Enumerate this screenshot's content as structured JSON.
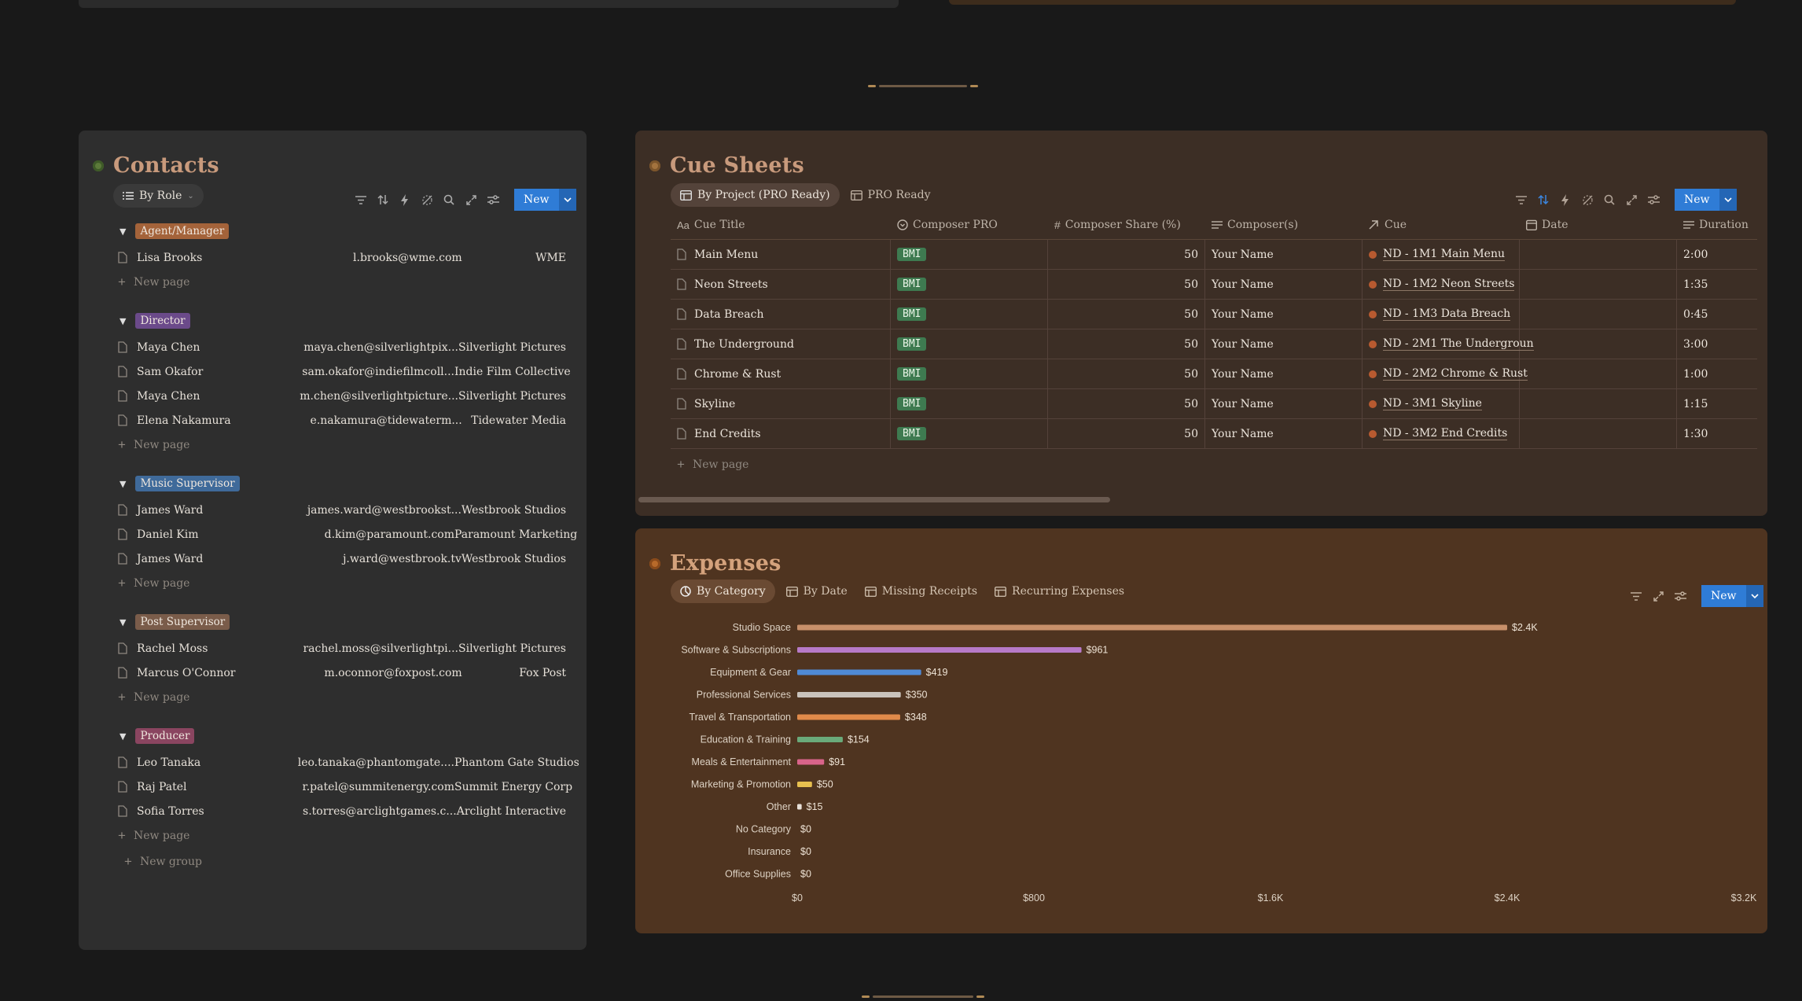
{
  "contacts": {
    "title": "Contacts",
    "view_label": "By Role",
    "new_label": "New",
    "new_page_label": "New page",
    "new_group_label": "New group",
    "groups": [
      {
        "tag": "Agent/Manager",
        "color": "#a4633a",
        "rows": [
          {
            "name": "Lisa Brooks",
            "email": "l.brooks@wme.com",
            "company": "WME"
          }
        ]
      },
      {
        "tag": "Director",
        "color": "#6b4a8a",
        "rows": [
          {
            "name": "Maya Chen",
            "email": "maya.chen@silverlightpix...",
            "company": "Silverlight Pictures"
          },
          {
            "name": "Sam Okafor",
            "email": "sam.okafor@indiefilmcoll...",
            "company": "Indie Film Collective"
          },
          {
            "name": "Maya Chen",
            "email": "m.chen@silverlightpicture...",
            "company": "Silverlight Pictures"
          },
          {
            "name": "Elena Nakamura",
            "email": "e.nakamura@tidewaterm...",
            "company": "Tidewater Media"
          }
        ]
      },
      {
        "tag": "Music Supervisor",
        "color": "#3f6a9a",
        "rows": [
          {
            "name": "James Ward",
            "email": "james.ward@westbrookst...",
            "company": "Westbrook Studios"
          },
          {
            "name": "Daniel Kim",
            "email": "d.kim@paramount.com",
            "company": "Paramount Marketing"
          },
          {
            "name": "James Ward",
            "email": "j.ward@westbrook.tv",
            "company": "Westbrook Studios"
          }
        ]
      },
      {
        "tag": "Post Supervisor",
        "color": "#7a5c4a",
        "rows": [
          {
            "name": "Rachel Moss",
            "email": "rachel.moss@silverlightpi...",
            "company": "Silverlight Pictures"
          },
          {
            "name": "Marcus O'Connor",
            "email": "m.oconnor@foxpost.com",
            "company": "Fox Post"
          }
        ]
      },
      {
        "tag": "Producer",
        "color": "#8a4560",
        "rows": [
          {
            "name": "Leo Tanaka",
            "email": "leo.tanaka@phantomgate....",
            "company": "Phantom Gate Studios"
          },
          {
            "name": "Raj Patel",
            "email": "r.patel@summitenergy.com",
            "company": "Summit Energy Corp"
          },
          {
            "name": "Sofia Torres",
            "email": "s.torres@arclightgames.c...",
            "company": "Arclight Interactive"
          }
        ]
      }
    ]
  },
  "cue_sheets": {
    "title": "Cue Sheets",
    "tabs": [
      "By Project (PRO Ready)",
      "PRO Ready"
    ],
    "new_label": "New",
    "new_page_label": "New page",
    "columns": [
      "Cue Title",
      "Composer PRO",
      "Composer Share (%)",
      "Composer(s)",
      "Cue",
      "Date",
      "Duration"
    ],
    "rows": [
      {
        "title": "Main Menu",
        "pro": "BMI",
        "share": "50",
        "composer": "Your Name",
        "cue": "ND - 1M1 Main Menu",
        "date": "",
        "duration": "2:00"
      },
      {
        "title": "Neon Streets",
        "pro": "BMI",
        "share": "50",
        "composer": "Your Name",
        "cue": "ND - 1M2 Neon Streets",
        "date": "",
        "duration": "1:35"
      },
      {
        "title": "Data Breach",
        "pro": "BMI",
        "share": "50",
        "composer": "Your Name",
        "cue": "ND - 1M3 Data Breach",
        "date": "",
        "duration": "0:45"
      },
      {
        "title": "The Underground",
        "pro": "BMI",
        "share": "50",
        "composer": "Your Name",
        "cue": "ND - 2M1 The Undergroun",
        "date": "",
        "duration": "3:00"
      },
      {
        "title": "Chrome & Rust",
        "pro": "BMI",
        "share": "50",
        "composer": "Your Name",
        "cue": "ND - 2M2 Chrome & Rust",
        "date": "",
        "duration": "1:00"
      },
      {
        "title": "Skyline",
        "pro": "BMI",
        "share": "50",
        "composer": "Your Name",
        "cue": "ND - 3M1 Skyline",
        "date": "",
        "duration": "1:15"
      },
      {
        "title": "End Credits",
        "pro": "BMI",
        "share": "50",
        "composer": "Your Name",
        "cue": "ND - 3M2 End Credits",
        "date": "",
        "duration": "1:30"
      }
    ]
  },
  "expenses": {
    "title": "Expenses",
    "tabs": [
      "By Category",
      "By Date",
      "Missing Receipts",
      "Recurring Expenses"
    ],
    "new_label": "New"
  },
  "chart_data": {
    "type": "bar",
    "orientation": "horizontal",
    "categories": [
      "Studio Space",
      "Software & Subscriptions",
      "Equipment & Gear",
      "Professional Services",
      "Travel & Transportation",
      "Education & Training",
      "Meals & Entertainment",
      "Marketing & Promotion",
      "Other",
      "No Category",
      "Insurance",
      "Office Supplies"
    ],
    "values": [
      2400,
      961,
      419,
      350,
      348,
      154,
      91,
      50,
      15,
      0,
      0,
      0
    ],
    "value_labels": [
      "$2.4K",
      "$961",
      "$419",
      "$350",
      "$348",
      "$154",
      "$91",
      "$50",
      "$15",
      "$0",
      "$0",
      "$0"
    ],
    "colors": [
      "#c8906a",
      "#b77ac8",
      "#4f8ad6",
      "#c9c2bb",
      "#e08a4a",
      "#6aaa7a",
      "#d9648a",
      "#e8c04f",
      "#e8e0d8",
      "#888888",
      "#888888",
      "#888888"
    ],
    "xlim": [
      0,
      3200
    ],
    "xticks": [
      "$0",
      "$800",
      "$1.6K",
      "$2.4K",
      "$3.2K"
    ],
    "grid": false
  }
}
